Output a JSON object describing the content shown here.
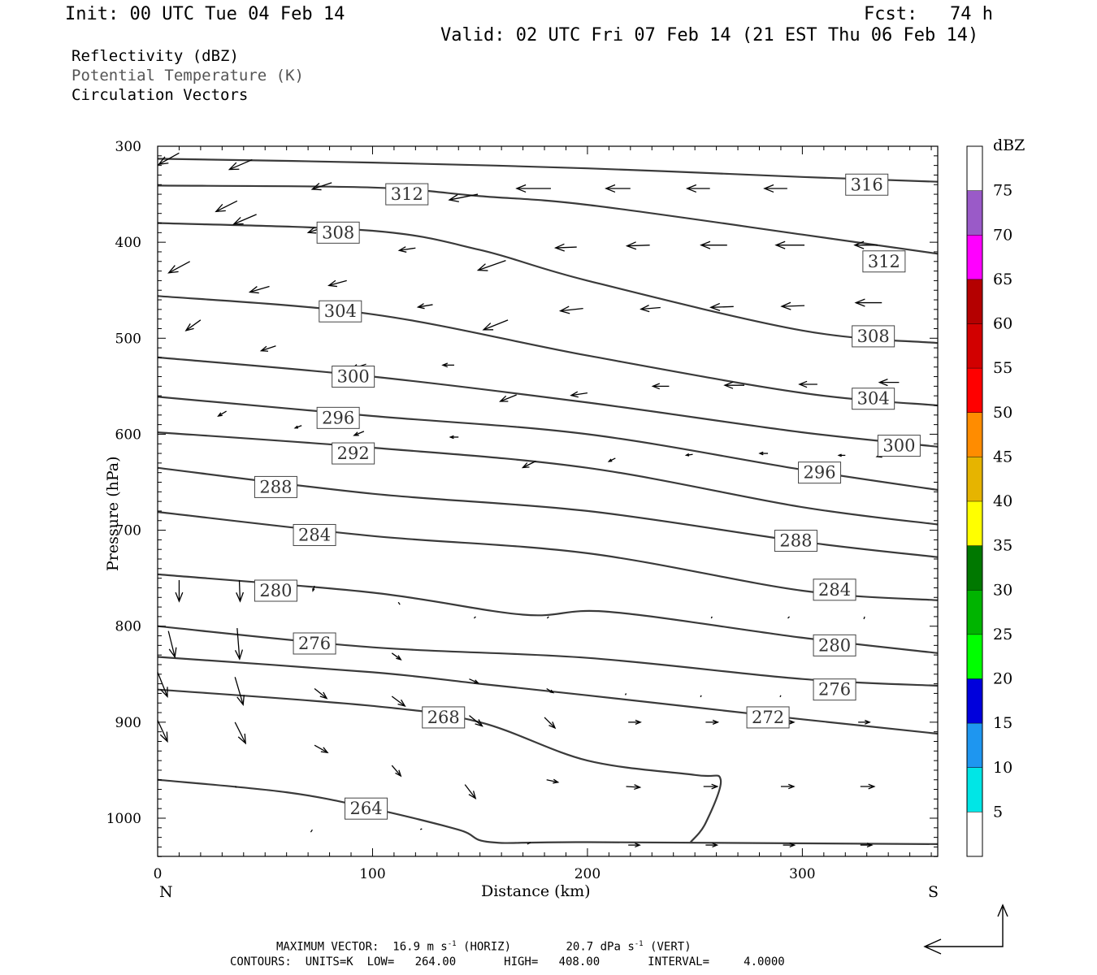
{
  "header": {
    "init": "Init: 00 UTC Tue 04 Feb 14",
    "fcst": "Fcst:   74 h",
    "valid": "Valid: 02 UTC Fri 07 Feb 14 (21 EST Thu 06 Feb 14)"
  },
  "fields": {
    "reflectivity": "Reflectivity (dBZ)",
    "theta": "Potential Temperature (K)",
    "vectors": "Circulation Vectors"
  },
  "footer": {
    "max_vector_label": "MAXIMUM VECTOR:",
    "max_horiz": "16.9 m s",
    "horiz_exp": "-1",
    "horiz_tag": "(HORIZ)",
    "max_vert": "20.7 dPa s",
    "vert_exp": "-1",
    "vert_tag": "(VERT)",
    "contours": "CONTOURS:  UNITS=K  LOW=   264.00       HIGH=   408.00       INTERVAL=     4.0000"
  },
  "colors": {
    "contour": "#3a3a3a",
    "axis": "#000000"
  },
  "chart_data": {
    "type": "line",
    "xlabel": "Distance (km)",
    "ylabel": "Pressure (hPa)",
    "xlim": [
      0,
      363
    ],
    "ylim": [
      1040,
      300
    ],
    "x_ticks": [
      0,
      100,
      200,
      300
    ],
    "y_ticks": [
      300,
      400,
      500,
      600,
      700,
      800,
      900,
      1000
    ],
    "x_end_labels": {
      "left": "N",
      "right": "S"
    },
    "colorbar": {
      "title": "dBZ",
      "ticks": [
        75,
        70,
        65,
        60,
        55,
        50,
        45,
        40,
        35,
        30,
        25,
        20,
        15,
        10,
        5
      ],
      "bins": [
        {
          "low": 75,
          "high": 80,
          "color": "#ffffff"
        },
        {
          "low": 70,
          "high": 75,
          "color": "#9a5ac8"
        },
        {
          "low": 65,
          "high": 70,
          "color": "#ff00ff"
        },
        {
          "low": 60,
          "high": 65,
          "color": "#b40000"
        },
        {
          "low": 55,
          "high": 60,
          "color": "#d20000"
        },
        {
          "low": 50,
          "high": 55,
          "color": "#ff0000"
        },
        {
          "low": 45,
          "high": 50,
          "color": "#ff8c00"
        },
        {
          "low": 40,
          "high": 45,
          "color": "#e6b400"
        },
        {
          "low": 35,
          "high": 40,
          "color": "#ffff00"
        },
        {
          "low": 30,
          "high": 35,
          "color": "#007800"
        },
        {
          "low": 25,
          "high": 30,
          "color": "#00b400"
        },
        {
          "low": 20,
          "high": 25,
          "color": "#00ff00"
        },
        {
          "low": 15,
          "high": 20,
          "color": "#0000dc"
        },
        {
          "low": 10,
          "high": 15,
          "color": "#1e96f0"
        },
        {
          "low": 5,
          "high": 10,
          "color": "#00e6e6"
        },
        {
          "low": 0,
          "high": 5,
          "color": "#ffffff"
        }
      ]
    },
    "isentropes": [
      {
        "theta": 316,
        "points": [
          [
            0,
            313
          ],
          [
            100,
            317
          ],
          [
            200,
            323
          ],
          [
            300,
            332
          ],
          [
            363,
            337
          ]
        ],
        "label": [
          330,
          340
        ]
      },
      {
        "theta": 312,
        "points": [
          [
            0,
            341
          ],
          [
            100,
            343
          ],
          [
            150,
            352
          ],
          [
            200,
            361
          ],
          [
            300,
            392
          ],
          [
            363,
            412
          ]
        ],
        "label": [
          116,
          350
        ]
      },
      {
        "theta": 312,
        "points": [
          [
            0,
            341
          ],
          [
            100,
            343
          ],
          [
            150,
            352
          ],
          [
            200,
            361
          ],
          [
            300,
            392
          ],
          [
            363,
            412
          ]
        ],
        "label": [
          338,
          420
        ]
      },
      {
        "theta": 308,
        "points": [
          [
            0,
            380
          ],
          [
            100,
            388
          ],
          [
            150,
            408
          ],
          [
            200,
            440
          ],
          [
            300,
            492
          ],
          [
            363,
            505
          ]
        ],
        "label": [
          84,
          390
        ]
      },
      {
        "theta": 308,
        "points": [
          [
            0,
            380
          ],
          [
            100,
            388
          ],
          [
            150,
            408
          ],
          [
            200,
            440
          ],
          [
            300,
            492
          ],
          [
            363,
            505
          ]
        ],
        "label": [
          333,
          498
        ]
      },
      {
        "theta": 304,
        "points": [
          [
            0,
            456
          ],
          [
            100,
            475
          ],
          [
            200,
            518
          ],
          [
            300,
            557
          ],
          [
            363,
            570
          ]
        ],
        "label": [
          85,
          472
        ]
      },
      {
        "theta": 304,
        "points": [
          [
            0,
            456
          ],
          [
            100,
            475
          ],
          [
            200,
            518
          ],
          [
            300,
            557
          ],
          [
            363,
            570
          ]
        ],
        "label": [
          333,
          563
        ]
      },
      {
        "theta": 300,
        "points": [
          [
            0,
            520
          ],
          [
            100,
            540
          ],
          [
            200,
            567
          ],
          [
            300,
            598
          ],
          [
            363,
            613
          ]
        ],
        "label": [
          91,
          540
        ]
      },
      {
        "theta": 300,
        "points": [
          [
            0,
            520
          ],
          [
            100,
            540
          ],
          [
            200,
            567
          ],
          [
            300,
            598
          ],
          [
            363,
            613
          ]
        ],
        "label": [
          345,
          612
        ]
      },
      {
        "theta": 296,
        "points": [
          [
            0,
            561
          ],
          [
            100,
            581
          ],
          [
            200,
            600
          ],
          [
            300,
            637
          ],
          [
            363,
            658
          ]
        ],
        "label": [
          84,
          583
        ]
      },
      {
        "theta": 296,
        "points": [
          [
            0,
            561
          ],
          [
            100,
            581
          ],
          [
            200,
            600
          ],
          [
            300,
            637
          ],
          [
            363,
            658
          ]
        ],
        "label": [
          308,
          640
        ]
      },
      {
        "theta": 292,
        "points": [
          [
            0,
            598
          ],
          [
            100,
            614
          ],
          [
            200,
            635
          ],
          [
            300,
            676
          ],
          [
            363,
            694
          ]
        ],
        "label": [
          91,
          620
        ]
      },
      {
        "theta": 288,
        "points": [
          [
            0,
            635
          ],
          [
            100,
            662
          ],
          [
            200,
            680
          ],
          [
            300,
            712
          ],
          [
            363,
            728
          ]
        ],
        "label": [
          55,
          655
        ]
      },
      {
        "theta": 288,
        "points": [
          [
            0,
            635
          ],
          [
            100,
            662
          ],
          [
            200,
            680
          ],
          [
            300,
            712
          ],
          [
            363,
            728
          ]
        ],
        "label": [
          297,
          711
        ]
      },
      {
        "theta": 284,
        "points": [
          [
            0,
            681
          ],
          [
            100,
            706
          ],
          [
            200,
            724
          ],
          [
            300,
            763
          ],
          [
            363,
            773
          ]
        ],
        "label": [
          73,
          705
        ]
      },
      {
        "theta": 284,
        "points": [
          [
            0,
            681
          ],
          [
            100,
            706
          ],
          [
            200,
            724
          ],
          [
            300,
            763
          ],
          [
            363,
            773
          ]
        ],
        "label": [
          315,
          762
        ]
      },
      {
        "theta": 280,
        "points": [
          [
            0,
            746
          ],
          [
            100,
            765
          ],
          [
            170,
            788
          ],
          [
            210,
            785
          ],
          [
            300,
            812
          ],
          [
            363,
            828
          ]
        ],
        "label": [
          55,
          763
        ]
      },
      {
        "theta": 280,
        "points": [
          [
            0,
            746
          ],
          [
            100,
            765
          ],
          [
            170,
            788
          ],
          [
            210,
            785
          ],
          [
            300,
            812
          ],
          [
            363,
            828
          ]
        ],
        "label": [
          315,
          820
        ]
      },
      {
        "theta": 276,
        "points": [
          [
            0,
            800
          ],
          [
            100,
            822
          ],
          [
            200,
            833
          ],
          [
            300,
            855
          ],
          [
            363,
            862
          ]
        ],
        "label": [
          73,
          818
        ]
      },
      {
        "theta": 276,
        "points": [
          [
            0,
            800
          ],
          [
            100,
            822
          ],
          [
            200,
            833
          ],
          [
            300,
            855
          ],
          [
            363,
            862
          ]
        ],
        "label": [
          315,
          866
        ]
      },
      {
        "theta": 272,
        "points": [
          [
            0,
            832
          ],
          [
            100,
            848
          ],
          [
            150,
            860
          ],
          [
            200,
            872
          ],
          [
            300,
            897
          ],
          [
            363,
            912
          ]
        ],
        "label": [
          284,
          895
        ]
      },
      {
        "theta": 268,
        "points": [
          [
            0,
            866
          ],
          [
            100,
            883
          ],
          [
            150,
            900
          ],
          [
            200,
            940
          ],
          [
            250,
            955
          ],
          [
            262,
            960
          ],
          [
            255,
            1005
          ],
          [
            248,
            1025
          ]
        ],
        "label": [
          133,
          895
        ]
      },
      {
        "theta": 264,
        "points": [
          [
            0,
            960
          ],
          [
            60,
            973
          ],
          [
            100,
            990
          ],
          [
            140,
            1012
          ],
          [
            155,
            1025
          ],
          [
            200,
            1025
          ],
          [
            363,
            1027
          ]
        ],
        "label": [
          97,
          990
        ]
      }
    ],
    "vectors": [
      [
        10,
        307,
        -25,
        14
      ],
      [
        44,
        314,
        -28,
        12
      ],
      [
        81,
        338,
        -24,
        8
      ],
      [
        37,
        357,
        -26,
        13
      ],
      [
        46,
        371,
        -28,
        12
      ],
      [
        78,
        384,
        -21,
        7
      ],
      [
        116,
        351,
        -20,
        5
      ],
      [
        149,
        350,
        -35,
        7
      ],
      [
        183,
        344,
        -42,
        0
      ],
      [
        220,
        344,
        -30,
        0
      ],
      [
        257,
        344,
        -28,
        0
      ],
      [
        293,
        344,
        -28,
        0
      ],
      [
        338,
        344,
        -34,
        0
      ],
      [
        120,
        406,
        -20,
        3
      ],
      [
        162,
        419,
        -34,
        12
      ],
      [
        195,
        405,
        -26,
        1
      ],
      [
        229,
        403,
        -28,
        1
      ],
      [
        265,
        403,
        -32,
        0
      ],
      [
        301,
        403,
        -35,
        0
      ],
      [
        335,
        403,
        -28,
        0
      ],
      [
        15,
        420,
        -26,
        14
      ],
      [
        52,
        446,
        -24,
        7
      ],
      [
        88,
        440,
        -22,
        6
      ],
      [
        128,
        465,
        -18,
        3
      ],
      [
        163,
        481,
        -30,
        12
      ],
      [
        198,
        469,
        -28,
        3
      ],
      [
        234,
        468,
        -24,
        2
      ],
      [
        268,
        467,
        -28,
        1
      ],
      [
        301,
        466,
        -28,
        1
      ],
      [
        337,
        463,
        -32,
        0
      ],
      [
        20,
        481,
        -18,
        13
      ],
      [
        55,
        508,
        -18,
        6
      ],
      [
        97,
        527,
        -18,
        6
      ],
      [
        138,
        528,
        -14,
        0
      ],
      [
        167,
        559,
        -20,
        8
      ],
      [
        200,
        557,
        -20,
        3
      ],
      [
        238,
        550,
        -20,
        0
      ],
      [
        273,
        549,
        -24,
        0
      ],
      [
        307,
        548,
        -22,
        0
      ],
      [
        345,
        546,
        -24,
        0
      ],
      [
        32,
        576,
        -10,
        6
      ],
      [
        67,
        591,
        -8,
        3
      ],
      [
        96,
        597,
        -12,
        5
      ],
      [
        140,
        603,
        -10,
        0
      ],
      [
        176,
        628,
        -16,
        8
      ],
      [
        213,
        625,
        -8,
        4
      ],
      [
        249,
        621,
        -8,
        1
      ],
      [
        284,
        620,
        -10,
        0
      ],
      [
        320,
        622,
        -8,
        0
      ],
      [
        340,
        620,
        -14,
        4
      ],
      [
        10,
        752,
        0,
        26
      ],
      [
        38,
        752,
        1,
        26
      ],
      [
        73,
        758,
        -2,
        6
      ],
      [
        112,
        775,
        2,
        3
      ],
      [
        148,
        790,
        -2,
        2
      ],
      [
        182,
        790,
        -2,
        2
      ],
      [
        258,
        790,
        -1,
        2
      ],
      [
        294,
        790,
        -2,
        2
      ],
      [
        329,
        790,
        -1,
        3
      ],
      [
        5,
        805,
        8,
        32
      ],
      [
        37,
        802,
        3,
        38
      ],
      [
        109,
        828,
        11,
        8
      ],
      [
        145,
        855,
        11,
        5
      ],
      [
        181,
        865,
        8,
        5
      ],
      [
        218,
        870,
        -1,
        2
      ],
      [
        253,
        872,
        -1,
        2
      ],
      [
        290,
        872,
        -1,
        2
      ],
      [
        323,
        867,
        -1,
        2
      ],
      [
        0,
        848,
        12,
        30
      ],
      [
        36,
        853,
        10,
        34
      ],
      [
        73,
        865,
        15,
        12
      ],
      [
        109,
        873,
        16,
        12
      ],
      [
        145,
        893,
        16,
        13
      ],
      [
        180,
        895,
        13,
        13
      ],
      [
        219,
        900,
        15,
        0
      ],
      [
        255,
        900,
        15,
        0
      ],
      [
        290,
        900,
        16,
        0
      ],
      [
        326,
        900,
        14,
        0
      ],
      [
        0,
        898,
        12,
        26
      ],
      [
        36,
        900,
        13,
        26
      ],
      [
        73,
        924,
        16,
        9
      ],
      [
        109,
        945,
        11,
        13
      ],
      [
        143,
        965,
        13,
        17
      ],
      [
        181,
        960,
        14,
        3
      ],
      [
        218,
        967,
        17,
        1
      ],
      [
        254,
        967,
        17,
        0
      ],
      [
        290,
        967,
        16,
        0
      ],
      [
        327,
        967,
        17,
        0
      ],
      [
        36,
        967,
        2,
        1
      ],
      [
        72,
        1012,
        -2,
        3
      ],
      [
        123,
        1011,
        -2,
        1
      ],
      [
        172,
        1027,
        4,
        -2
      ],
      [
        219,
        1028,
        14,
        0
      ],
      [
        255,
        1028,
        14,
        0
      ],
      [
        291,
        1028,
        14,
        0
      ],
      [
        327,
        1028,
        14,
        0
      ]
    ],
    "footer_reference_vector": {
      "horiz_ms": 16.9,
      "vert_dpas": 20.7
    }
  }
}
